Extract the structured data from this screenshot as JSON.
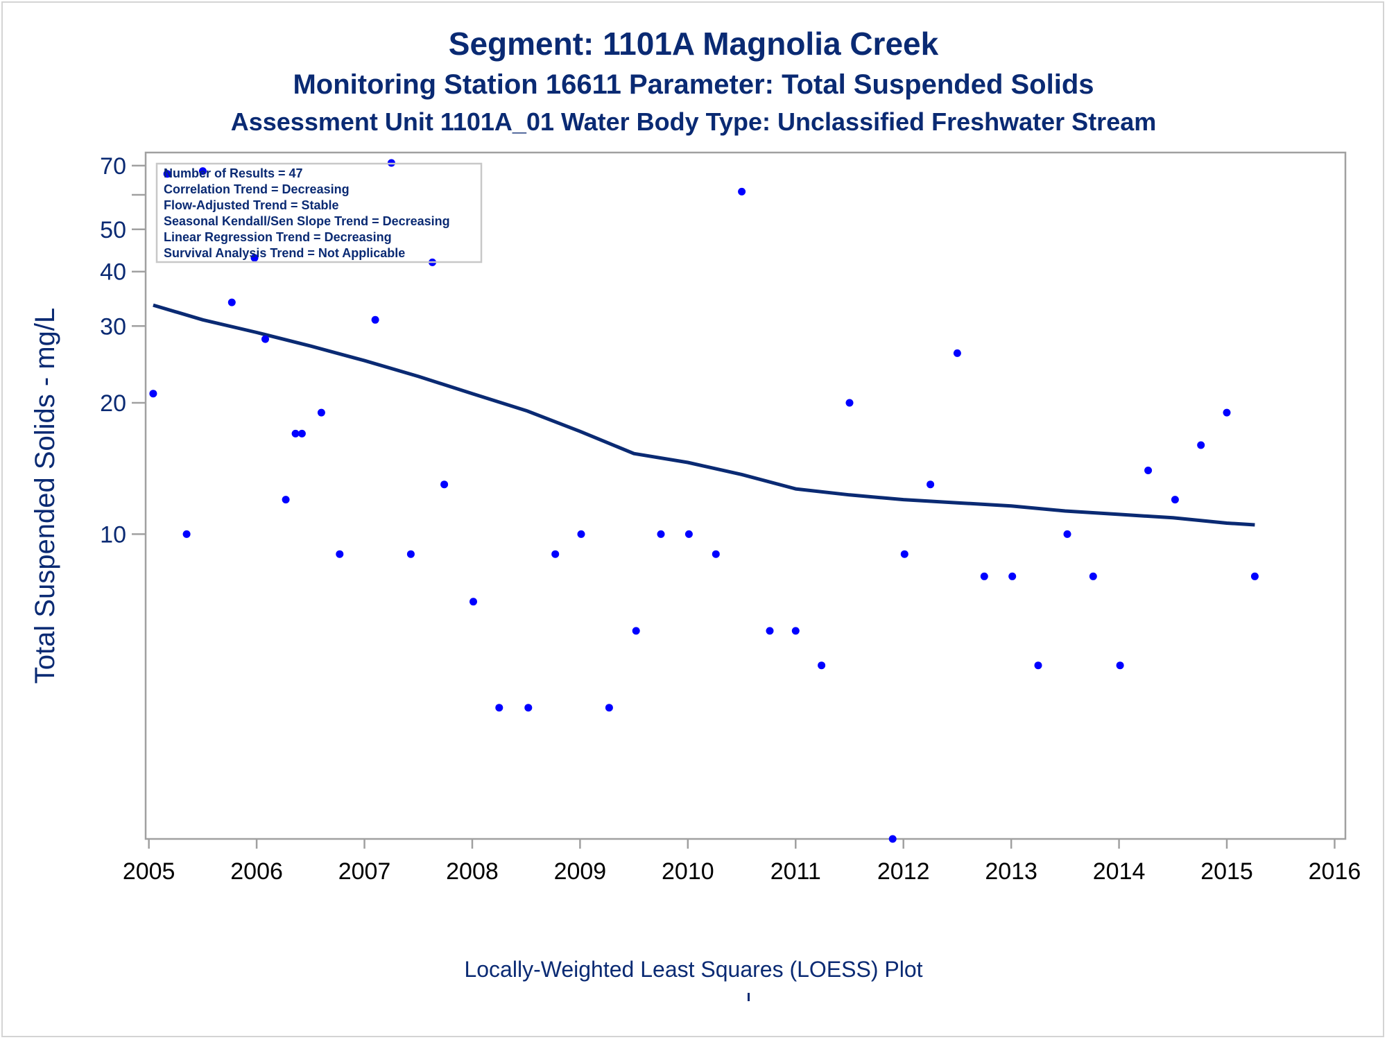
{
  "titles": {
    "line1": "Segment: 1101A  Magnolia Creek",
    "line2": "Monitoring Station 16611 Parameter: Total Suspended Solids",
    "line3": "Assessment Unit 1101A_01   Water Body Type: Unclassified Freshwater Stream"
  },
  "footnote": "Locally-Weighted Least Squares (LOESS) Plot",
  "colors": {
    "title": "#0a2a73",
    "points": "#0000ff",
    "loess_line": "#0a2a73",
    "axis": "#a0a0a0"
  },
  "chart_data": {
    "type": "scatter",
    "ylabel": "Total Suspended Solids - mg/L",
    "xlabel": "",
    "y_scale": "log",
    "ylim": [
      2,
      75
    ],
    "xlim": [
      2004.97,
      2016.1
    ],
    "y_ticks_labeled": [
      10,
      20,
      30,
      40,
      50,
      70
    ],
    "y_ticks_minor": [
      60
    ],
    "x_ticks": [
      2005,
      2006,
      2007,
      2008,
      2009,
      2010,
      2011,
      2012,
      2013,
      2014,
      2015,
      2016
    ],
    "stats_box": [
      "Number of Results = 47",
      "Correlation Trend = Decreasing",
      "Flow-Adjusted Trend = Stable",
      "Seasonal Kendall/Sen Slope Trend = Decreasing",
      "Linear Regression Trend = Decreasing",
      "Survival Analysis Trend = Not Applicable"
    ],
    "stats_box_placement": "top-left",
    "series": [
      {
        "points": [
          [
            2005.04,
            21
          ],
          [
            2005.17,
            67
          ],
          [
            2005.35,
            10
          ],
          [
            2005.5,
            68
          ],
          [
            2005.77,
            34
          ],
          [
            2005.98,
            43
          ],
          [
            2006.08,
            28
          ],
          [
            2006.27,
            12
          ],
          [
            2006.36,
            17
          ],
          [
            2006.42,
            17
          ],
          [
            2006.6,
            19
          ],
          [
            2006.77,
            9
          ],
          [
            2007.1,
            31
          ],
          [
            2007.25,
            71
          ],
          [
            2007.43,
            9
          ],
          [
            2007.63,
            42
          ],
          [
            2007.74,
            13
          ],
          [
            2008.01,
            7
          ],
          [
            2008.25,
            4
          ],
          [
            2008.52,
            4
          ],
          [
            2008.77,
            9
          ],
          [
            2009.01,
            10
          ],
          [
            2009.27,
            4
          ],
          [
            2009.52,
            6
          ],
          [
            2009.75,
            10
          ],
          [
            2010.01,
            10
          ],
          [
            2010.26,
            9
          ],
          [
            2010.5,
            61
          ],
          [
            2010.76,
            6
          ],
          [
            2011.0,
            6
          ],
          [
            2011.24,
            5
          ],
          [
            2011.5,
            20
          ],
          [
            2011.9,
            2
          ],
          [
            2012.01,
            9
          ],
          [
            2012.25,
            13
          ],
          [
            2012.5,
            26
          ],
          [
            2012.75,
            8
          ],
          [
            2013.01,
            8
          ],
          [
            2013.25,
            5
          ],
          [
            2013.52,
            10
          ],
          [
            2013.76,
            8
          ],
          [
            2014.01,
            5
          ],
          [
            2014.27,
            14
          ],
          [
            2014.52,
            12
          ],
          [
            2014.76,
            16
          ],
          [
            2015.0,
            19
          ],
          [
            2015.26,
            8
          ]
        ]
      },
      {
        "type": "line",
        "points": [
          [
            2005.04,
            33.5
          ],
          [
            2005.5,
            31
          ],
          [
            2006.0,
            29
          ],
          [
            2006.5,
            27
          ],
          [
            2007.0,
            25
          ],
          [
            2007.5,
            23
          ],
          [
            2008.0,
            21
          ],
          [
            2008.5,
            19.2
          ],
          [
            2009.0,
            17.2
          ],
          [
            2009.5,
            15.3
          ],
          [
            2010.0,
            14.6
          ],
          [
            2010.5,
            13.7
          ],
          [
            2011.0,
            12.7
          ],
          [
            2011.5,
            12.3
          ],
          [
            2012.0,
            12.0
          ],
          [
            2012.5,
            11.8
          ],
          [
            2013.0,
            11.6
          ],
          [
            2013.5,
            11.3
          ],
          [
            2014.0,
            11.1
          ],
          [
            2014.5,
            10.9
          ],
          [
            2015.0,
            10.6
          ],
          [
            2015.26,
            10.5
          ]
        ]
      }
    ]
  }
}
